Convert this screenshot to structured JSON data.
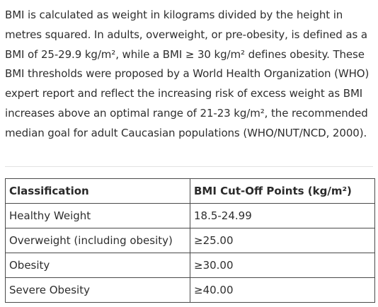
{
  "intro": {
    "paragraph": "BMI is calculated as weight in kilograms divided by the height in metres squared. In adults, overweight, or pre-obesity, is defined as a BMI of 25-29.9 kg/m², while a BMI ≥ 30 kg/m² defines obesity. These BMI thresholds were proposed by a World Health Organization (WHO) expert report and reflect the increasing risk of excess weight as BMI increases above an optimal range of 21-23 kg/m², the recommended median goal for adult Caucasian populations (WHO/NUT/NCD, 2000)."
  },
  "table": {
    "headers": [
      "Classification",
      "BMI Cut-Off Points (kg/m²)"
    ],
    "rows": [
      [
        "Healthy Weight",
        "18.5-24.99"
      ],
      [
        "Overweight (including obesity)",
        "≥25.00"
      ],
      [
        "Obesity",
        "≥30.00"
      ],
      [
        "Severe Obesity",
        "≥40.00"
      ]
    ]
  }
}
